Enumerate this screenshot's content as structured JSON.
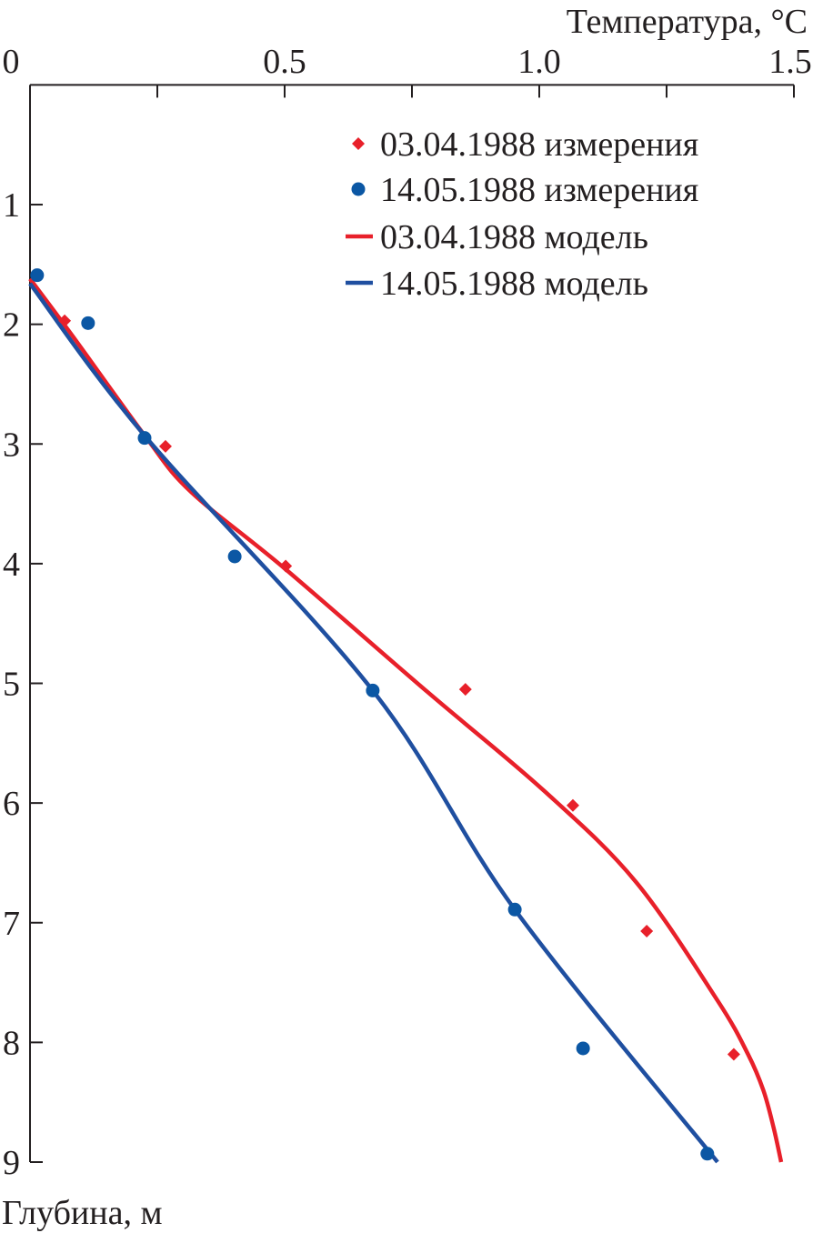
{
  "chart_data": {
    "type": "scatter",
    "title": "",
    "xlabel": "Температура, °C",
    "ylabel": "Глубина, м",
    "xlim": [
      0,
      1.5
    ],
    "ylim": [
      0,
      9
    ],
    "y_inverted": true,
    "x_axis_position": "top",
    "xticks": [
      0,
      0.25,
      0.5,
      0.75,
      1.0,
      1.25,
      1.5
    ],
    "xtick_labels": [
      {
        "value": 0,
        "label": "0"
      },
      {
        "value": 0.5,
        "label": "0.5"
      },
      {
        "value": 1.0,
        "label": "1.0"
      },
      {
        "value": 1.5,
        "label": "1.5"
      }
    ],
    "yticks": [
      1,
      2,
      3,
      4,
      5,
      6,
      7,
      8,
      9
    ],
    "ytick_labels": [
      "1",
      "2",
      "3",
      "4",
      "5",
      "6",
      "7",
      "8",
      "9"
    ],
    "grid": false,
    "legend_position": "top-right",
    "series": [
      {
        "name": "03.04.1988 измерения",
        "kind": "points",
        "marker": "diamond",
        "color": "#e8202a",
        "x": [
          0.068,
          0.266,
          0.502,
          0.855,
          1.066,
          1.211,
          1.382
        ],
        "y": [
          1.97,
          3.02,
          4.02,
          5.05,
          6.02,
          7.07,
          8.1
        ]
      },
      {
        "name": "14.05.1988 измерения",
        "kind": "points",
        "marker": "circle",
        "color": "#0b57a4",
        "x": [
          0.014,
          0.114,
          0.225,
          0.402,
          0.673,
          0.952,
          1.086,
          1.33
        ],
        "y": [
          1.59,
          1.99,
          2.95,
          3.94,
          5.06,
          6.89,
          8.05,
          8.93
        ]
      },
      {
        "name": "03.04.1988 модель",
        "kind": "line",
        "color": "#e8202a",
        "x": [
          0.0,
          0.084,
          0.227,
          0.316,
          0.5,
          0.78,
          1.01,
          1.19,
          1.35,
          1.41,
          1.44,
          1.46,
          1.475
        ],
        "y": [
          1.62,
          2.1,
          2.94,
          3.4,
          4.04,
          5.07,
          5.9,
          6.66,
          7.65,
          8.1,
          8.4,
          8.71,
          9.0
        ]
      },
      {
        "name": "14.05.1988 модель",
        "kind": "line",
        "color": "#1f4fa0",
        "x": [
          0.0,
          0.227,
          0.673,
          0.952,
          1.35
        ],
        "y": [
          1.66,
          2.94,
          5.06,
          6.89,
          9.0
        ]
      }
    ]
  }
}
